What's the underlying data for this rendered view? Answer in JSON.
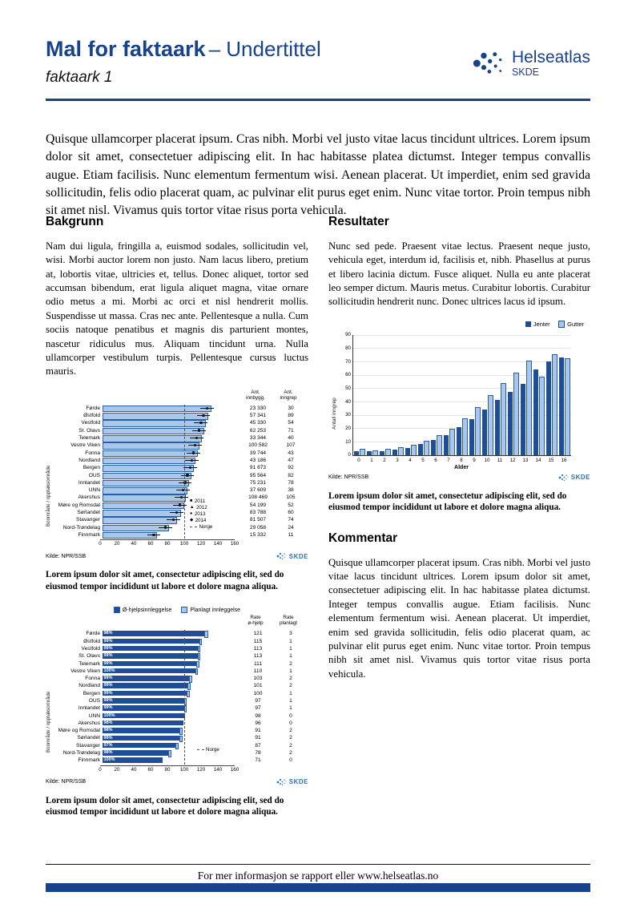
{
  "colors": {
    "brand": "#17428C",
    "dark_bar": "#1F4E99",
    "light_bar": "#A9C7E9",
    "skde_blue": "#2E75B6"
  },
  "header": {
    "title": "Mal for faktaark",
    "subtitle": "– Undertittel",
    "doc_label": "faktaark 1",
    "logo_name": "Helseatlas",
    "logo_org": "SKDE"
  },
  "intro": "Quisque ullamcorper placerat ipsum. Cras nibh. Morbi vel justo vitae lacus tincidunt ultrices. Lorem ipsum dolor sit amet, consectetuer adipiscing elit. In hac habitasse platea dictumst. Integer tempus convallis augue. Etiam facilisis. Nunc elementum fermentum wisi. Aenean placerat. Ut imperdiet, enim sed gravida sollicitudin, felis odio placerat quam, ac pulvinar elit purus eget enim. Nunc vitae tortor. Proin tempus nibh sit amet nisl. Vivamus quis tortor vitae risus porta vehicula.",
  "sections": {
    "bakgrunn": {
      "heading": "Bakgrunn",
      "body": "Nam dui ligula, fringilla a, euismod sodales, sollicitudin vel, wisi. Morbi auctor lorem non justo. Nam lacus libero, pretium at, lobortis vitae, ultricies et, tellus. Donec aliquet, tortor sed accumsan bibendum, erat ligula aliquet magna, vitae ornare odio metus a mi. Morbi ac orci et nisl hendrerit mollis. Suspendisse ut massa. Cras nec ante. Pellentesque a nulla. Cum sociis natoque penatibus et magnis dis parturient montes, nascetur ridiculus mus. Aliquam tincidunt urna. Nulla ullamcorper vestibulum turpis. Pellentesque cursus luctus mauris."
    },
    "resultater": {
      "heading": "Resultater",
      "body": "Nunc sed pede. Praesent vitae lectus. Praesent neque justo, vehicula eget, interdum id, facilisis et, nibh. Phasellus at purus et libero lacinia dictum. Fusce aliquet. Nulla eu ante placerat leo semper dictum. Mauris metus. Curabitur lobortis. Curabitur sollicitudin hendrerit nunc. Donec ultrices lacus id ipsum."
    },
    "kommentar": {
      "heading": "Kommentar",
      "body": "Quisque ullamcorper placerat ipsum. Cras nibh. Morbi vel justo vitae lacus tincidunt ultrices. Lorem ipsum dolor sit amet, consectetuer adipiscing elit. In hac habitasse platea dictumst. Integer tempus convallis augue. Etiam facilisis. Nunc elementum fermentum wisi. Aenean placerat. Ut imperdiet, enim sed gravida sollicitudin, felis odio placerat quam, ac pulvinar elit purus eget enim. Nunc vitae tortor. Proin tempus nibh sit amet nisl. Vivamus quis tortor vitae risus porta vehicula."
    }
  },
  "captions": {
    "fig1": "Lorem ipsum dolor sit amet, consectetur adipiscing elit, sed do eiusmod tempor incididunt ut labore et dolore magna aliqua.",
    "fig2": "Lorem ipsum dolor sit amet, consectetur adipiscing elit, sed do eiusmod tempor incididunt ut labore et dolore magna aliqua.",
    "fig3": "Lorem ipsum dolor sit amet, consectetur adipiscing elit, sed do eiusmod tempor incididunt ut labore et dolore magna aliqua."
  },
  "footer": {
    "text": "For mer informasjon se rapport eller www.helseatlas.no"
  },
  "chart_data": [
    {
      "id": "fig1",
      "type": "bar",
      "orientation": "horizontal",
      "ylabel": "Boområde / opptaksområde",
      "xlim": [
        0,
        160
      ],
      "xticks": [
        0,
        20,
        40,
        60,
        80,
        100,
        120,
        140,
        160
      ],
      "categories": [
        "Førde",
        "Østfold",
        "Vestfold",
        "St. Olavs",
        "Telemark",
        "Vestre Viken",
        "Fonna",
        "Nordland",
        "Bergen",
        "OUS",
        "Innlandet",
        "UNN",
        "Akershus",
        "Møre og Romsdal",
        "Sørlandet",
        "Stavanger",
        "Nord-Trøndelag",
        "Finnmark"
      ],
      "values": [
        128,
        124,
        121,
        119,
        116,
        113,
        111,
        109,
        107,
        104,
        101,
        99,
        97,
        95,
        91,
        87,
        77,
        63
      ],
      "point_values": [
        124,
        120,
        117,
        115,
        112,
        110,
        108,
        106,
        104,
        101,
        98,
        96,
        94,
        92,
        88,
        84,
        75,
        61
      ],
      "whisker": 8,
      "norge_line": 100,
      "legend": [
        "2011",
        "2012",
        "2013",
        "2014"
      ],
      "norge_label": "Norge",
      "columns": {
        "headers": [
          [
            "Ant.",
            "innbygg."
          ],
          [
            "Ant.",
            "inngrep"
          ]
        ],
        "rows": [
          [
            "23 330",
            "30"
          ],
          [
            "57 341",
            "89"
          ],
          [
            "45 330",
            "54"
          ],
          [
            "62 253",
            "71"
          ],
          [
            "33 344",
            "40"
          ],
          [
            "100 582",
            "107"
          ],
          [
            "39 744",
            "43"
          ],
          [
            "43 186",
            "47"
          ],
          [
            "91 673",
            "92"
          ],
          [
            "95 564",
            "82"
          ],
          [
            "75 231",
            "78"
          ],
          [
            "37 609",
            "38"
          ],
          [
            "108 469",
            "105"
          ],
          [
            "54 199",
            "52"
          ],
          [
            "83 788",
            "60"
          ],
          [
            "81 507",
            "74"
          ],
          [
            "29 058",
            "24"
          ],
          [
            "15 332",
            "11"
          ]
        ]
      },
      "source": "Kilde: NPR/SSB"
    },
    {
      "id": "fig2",
      "type": "bar",
      "orientation": "horizontal",
      "stacked": true,
      "ylabel": "Boområde / opptaksområde",
      "xlim": [
        0,
        160
      ],
      "xticks": [
        0,
        20,
        40,
        60,
        80,
        100,
        120,
        140,
        160
      ],
      "categories": [
        "Førde",
        "Østfold",
        "Vestfold",
        "St. Olavs",
        "Telemark",
        "Vestre Viken",
        "Fonna",
        "Nordland",
        "Bergen",
        "OUS",
        "Innlandet",
        "UNN",
        "Akershus",
        "Møre og Romsdal",
        "Sørlandet",
        "Stavanger",
        "Nord-Trøndelag",
        "Finnmark"
      ],
      "series": [
        {
          "name": "Ø-hjelpsinnleggelse",
          "values": [
            121,
            115,
            113,
            113,
            111,
            110,
            103,
            101,
            100,
            97,
            97,
            98,
            96,
            91,
            91,
            87,
            78,
            71
          ]
        },
        {
          "name": "Planlagt innleggelse",
          "values": [
            3,
            1,
            1,
            1,
            2,
            1,
            2,
            2,
            1,
            1,
            1,
            0,
            0,
            2,
            2,
            2,
            2,
            0
          ]
        }
      ],
      "bar_labels": [
        "98%",
        "99%",
        "99%",
        "99%",
        "99%",
        "100%",
        "99%",
        "99%",
        "99%",
        "99%",
        "99%",
        "100%",
        "98%",
        "98%",
        "99%",
        "97%",
        "98%",
        "100%"
      ],
      "norge_line": 100,
      "norge_label": "Norge",
      "columns": {
        "headers": [
          [
            "Rate",
            "ø-hjelp"
          ],
          [
            "Rate",
            "planlagt"
          ]
        ],
        "rows": [
          [
            "121",
            "3"
          ],
          [
            "115",
            "1"
          ],
          [
            "113",
            "1"
          ],
          [
            "113",
            "1"
          ],
          [
            "111",
            "2"
          ],
          [
            "110",
            "1"
          ],
          [
            "103",
            "2"
          ],
          [
            "101",
            "2"
          ],
          [
            "100",
            "1"
          ],
          [
            "97",
            "1"
          ],
          [
            "97",
            "1"
          ],
          [
            "98",
            "0"
          ],
          [
            "96",
            "0"
          ],
          [
            "91",
            "2"
          ],
          [
            "91",
            "2"
          ],
          [
            "87",
            "2"
          ],
          [
            "78",
            "2"
          ],
          [
            "71",
            "0"
          ]
        ]
      },
      "source": "Kilde: NPR/SSB"
    },
    {
      "id": "fig3",
      "type": "bar",
      "categories": [
        "0",
        "1",
        "2",
        "3",
        "4",
        "5",
        "6",
        "7",
        "8",
        "9",
        "10",
        "11",
        "12",
        "13",
        "14",
        "15",
        "16"
      ],
      "series": [
        {
          "name": "Jenter",
          "values": [
            3,
            3,
            3,
            4,
            5,
            8,
            11,
            15,
            21,
            27,
            34,
            41,
            47,
            53,
            64,
            70,
            73
          ]
        },
        {
          "name": "Gutter",
          "values": [
            4,
            3,
            4,
            5,
            7,
            10,
            14,
            19,
            27,
            35,
            44,
            53,
            61,
            70,
            58,
            75,
            72
          ]
        }
      ],
      "xlabel": "Alder",
      "ylabel": "Antall inngrep",
      "ylim": [
        0,
        90
      ],
      "yticks": [
        0,
        10,
        20,
        30,
        40,
        50,
        60,
        70,
        80,
        90
      ],
      "legend_position": "top-right",
      "source": "Kilde: NPR/SSB"
    }
  ]
}
